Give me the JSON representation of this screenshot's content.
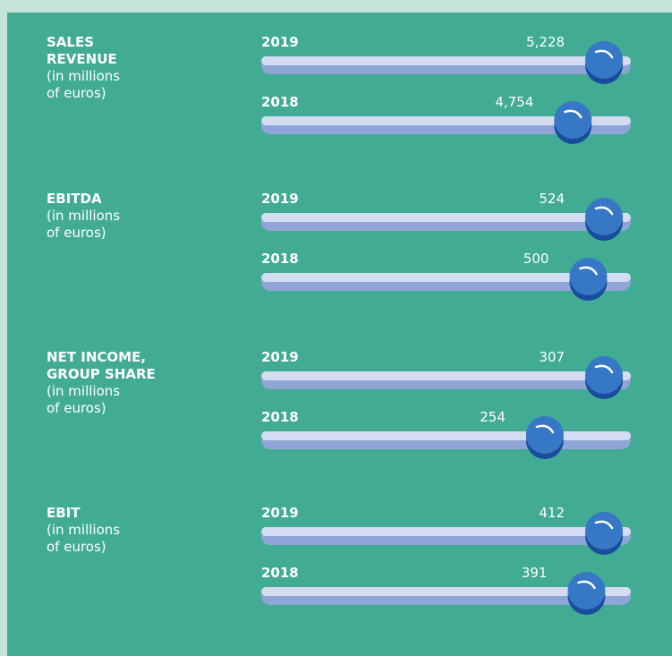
{
  "metrics": [
    {
      "title": [
        "SALES",
        "REVENUE"
      ],
      "note": [
        "(in millions",
        "of euros)"
      ],
      "years": [
        "2019",
        "2018"
      ],
      "values": [
        5228,
        4754
      ],
      "value_labels": [
        "5,228",
        "4,754"
      ]
    },
    {
      "title": [
        "EBITDA"
      ],
      "note": [
        "(in millions",
        "of euros)"
      ],
      "years": [
        "2019",
        "2018"
      ],
      "values": [
        524,
        500
      ]
    },
    {
      "title": [
        "NET INCOME,",
        "GROUP SHARE"
      ],
      "note": [
        "(in millions",
        "of euros)"
      ],
      "years": [
        "2019",
        "2018"
      ],
      "values": [
        307,
        254
      ]
    },
    {
      "title": [
        "EBIT"
      ],
      "note": [
        "(in millions",
        "of euros)"
      ],
      "years": [
        "2019",
        "2018"
      ],
      "values": [
        412,
        391
      ]
    }
  ]
}
